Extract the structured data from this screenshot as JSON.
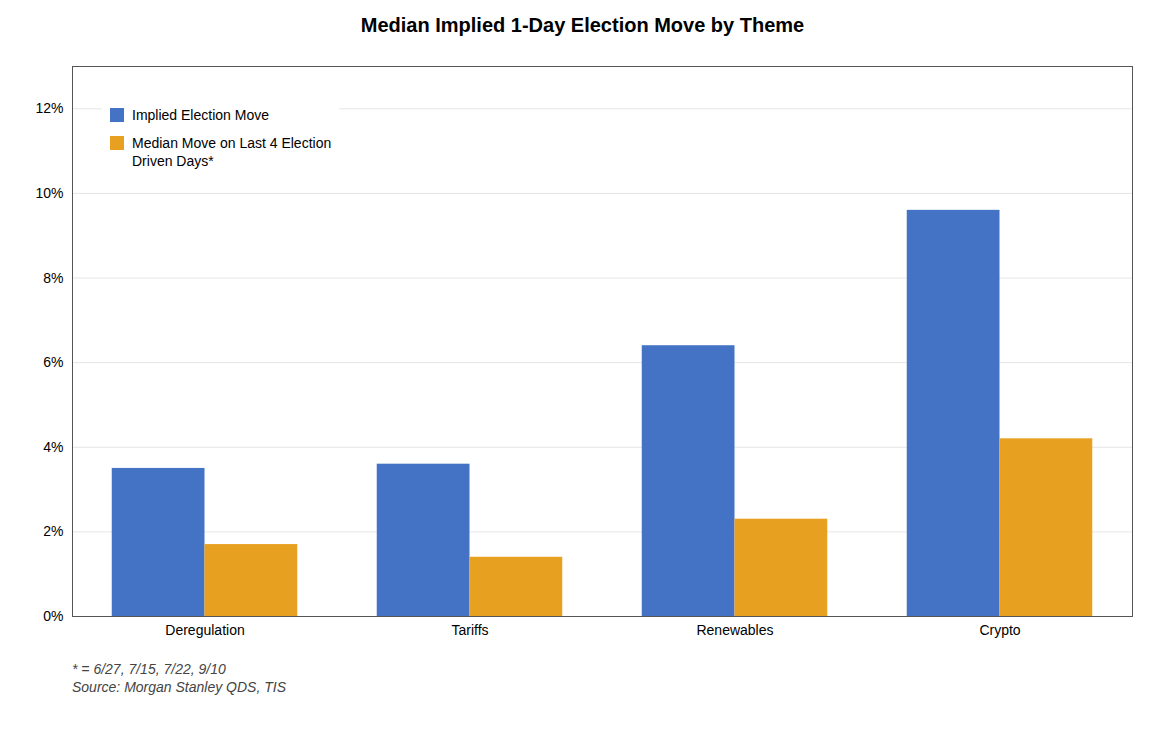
{
  "chart_data": {
    "type": "bar",
    "title": "Median Implied 1-Day Election Move by Theme",
    "categories": [
      "Deregulation",
      "Tariffs",
      "Renewables",
      "Crypto"
    ],
    "series": [
      {
        "name": "Implied Election Move",
        "color": "#4472C4",
        "values": [
          0.035,
          0.036,
          0.064,
          0.096
        ]
      },
      {
        "name": "Median Move on Last 4 Election\nDriven Days*",
        "color": "#E8A020",
        "values": [
          0.017,
          0.014,
          0.023,
          0.042
        ]
      }
    ],
    "ylim": [
      0,
      0.13
    ],
    "yticks": [
      {
        "value": 0.0,
        "label": "0%"
      },
      {
        "value": 0.02,
        "label": "2%"
      },
      {
        "value": 0.04,
        "label": "4%"
      },
      {
        "value": 0.06,
        "label": "6%"
      },
      {
        "value": 0.08,
        "label": "8%"
      },
      {
        "value": 0.1,
        "label": "10%"
      },
      {
        "value": 0.12,
        "label": "12%"
      }
    ],
    "grid": true,
    "legend": "upper left",
    "footnote": "* = 6/27, 7/15, 7/22, 9/10\nSource: Morgan Stanley QDS, TIS"
  }
}
